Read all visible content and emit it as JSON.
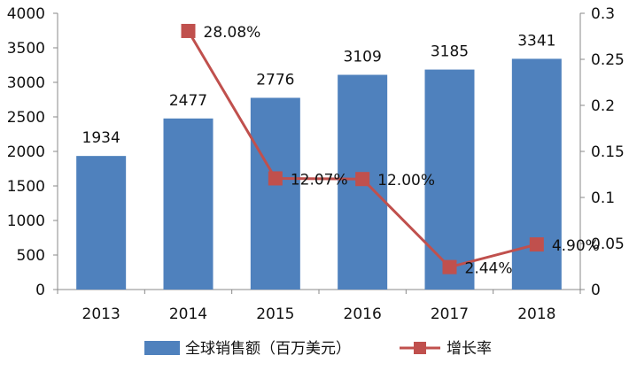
{
  "chart_data": {
    "type": "bar",
    "categories": [
      "2013",
      "2014",
      "2015",
      "2016",
      "2017",
      "2018"
    ],
    "series": [
      {
        "name": "全球销售额（百万美元）",
        "type": "bar",
        "axis": "left",
        "values": [
          1934,
          2477,
          2776,
          3109,
          3185,
          3341
        ],
        "labels": [
          "1934",
          "2477",
          "2776",
          "3109",
          "3185",
          "3341"
        ]
      },
      {
        "name": "增长率",
        "type": "line",
        "axis": "right",
        "values": [
          null,
          0.2808,
          0.1207,
          0.12,
          0.0244,
          0.049
        ],
        "labels": [
          "",
          "28.08%",
          "12.07%",
          "12.00%",
          "2.44%",
          "4.90%"
        ]
      }
    ],
    "y_left": {
      "min": 0,
      "max": 4000,
      "ticks": [
        "0",
        "500",
        "1000",
        "1500",
        "2000",
        "2500",
        "3000",
        "3500",
        "4000"
      ]
    },
    "y_right": {
      "min": 0,
      "max": 0.3,
      "ticks": [
        "0",
        "0.05",
        "0.1",
        "0.15",
        "0.2",
        "0.25",
        "0.3"
      ]
    },
    "legend_position": "bottom",
    "grid": false,
    "colors": {
      "bar": "#4f81bd",
      "line": "#c0504d",
      "axis": "#888888"
    }
  }
}
